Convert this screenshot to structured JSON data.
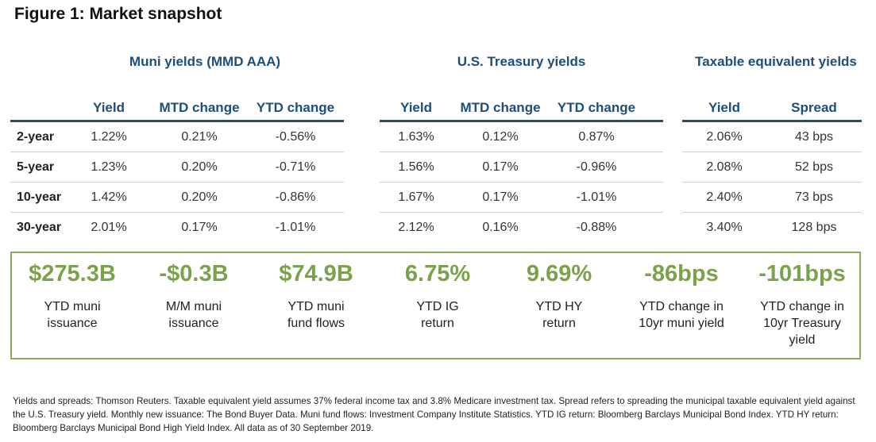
{
  "title": "Figure 1: Market snapshot",
  "row_labels": [
    "2-year",
    "5-year",
    "10-year",
    "30-year"
  ],
  "muni": {
    "title": "Muni yields (MMD AAA)",
    "headers": [
      "Yield",
      "MTD change",
      "YTD change"
    ],
    "rows": [
      [
        "1.22%",
        "0.21%",
        "-0.56%"
      ],
      [
        "1.23%",
        "0.20%",
        "-0.71%"
      ],
      [
        "1.42%",
        "0.20%",
        "-0.86%"
      ],
      [
        "2.01%",
        "0.17%",
        "-1.01%"
      ]
    ]
  },
  "treasury": {
    "title": "U.S. Treasury yields",
    "headers": [
      "Yield",
      "MTD change",
      "YTD change"
    ],
    "rows": [
      [
        "1.63%",
        "0.12%",
        "0.87%"
      ],
      [
        "1.56%",
        "0.17%",
        "-0.96%"
      ],
      [
        "1.67%",
        "0.17%",
        "-1.01%"
      ],
      [
        "2.12%",
        "0.16%",
        "-0.88%"
      ]
    ]
  },
  "taxable": {
    "title": "Taxable equivalent yields",
    "headers": [
      "Yield",
      "Spread"
    ],
    "rows": [
      [
        "2.06%",
        "43 bps"
      ],
      [
        "2.08%",
        "52 bps"
      ],
      [
        "2.40%",
        "73 bps"
      ],
      [
        "3.40%",
        "128 bps"
      ]
    ]
  },
  "stats": [
    {
      "value": "$275.3B",
      "label": "YTD muni\nissuance"
    },
    {
      "value": "-$0.3B",
      "label": "M/M muni\nissuance"
    },
    {
      "value": "$74.9B",
      "label": "YTD muni\nfund flows"
    },
    {
      "value": "6.75%",
      "label": "YTD IG\nreturn"
    },
    {
      "value": "9.69%",
      "label": "YTD HY\nreturn"
    },
    {
      "value": "-86bps",
      "label": "YTD change in\n10yr muni yield"
    },
    {
      "value": "-101bps",
      "label": "YTD change in\n10yr Treasury\nyield"
    }
  ],
  "colors": {
    "header_blue": "#1f4e79",
    "stat_green": "#7aa24a",
    "border_green": "#8aab5a"
  },
  "footnote": "Yields and spreads: Thomson Reuters. Taxable equivalent yield assumes 37% federal income tax and 3.8% Medicare investment tax. Spread refers to spreading the municipal taxable equivalent yield against the U.S. Treasury yield. Monthly new issuance: The Bond Buyer Data. Muni fund flows: Investment Company Institute Statistics. YTD IG return: Bloomberg Barclays Municipal Bond Index. YTD HY return: Bloomberg Barclays Municipal Bond High Yield Index. All data as of 30 September 2019."
}
